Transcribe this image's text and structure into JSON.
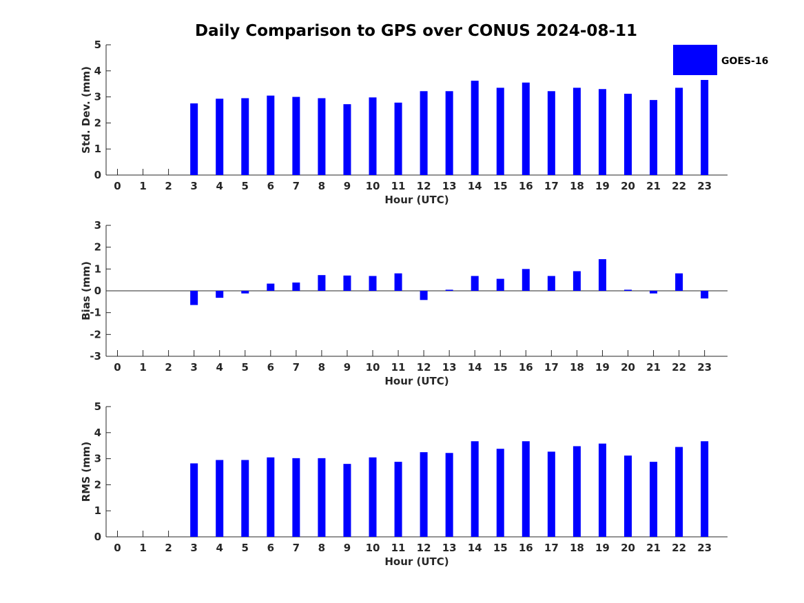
{
  "chart_data": {
    "type": "bar",
    "title": "Daily Comparison to GPS over CONUS 2024-08-11",
    "bar_color": "#0000ff",
    "legend": [
      "GOES-16"
    ],
    "legend_position": "top-right",
    "categories": [
      "0",
      "1",
      "2",
      "3",
      "4",
      "5",
      "6",
      "7",
      "8",
      "9",
      "10",
      "11",
      "12",
      "13",
      "14",
      "15",
      "16",
      "17",
      "18",
      "19",
      "20",
      "21",
      "22",
      "23"
    ],
    "panels": [
      {
        "id": "std",
        "ylabel": "Std. Dev. (mm)",
        "xlabel": "Hour (UTC)",
        "ylim": [
          0,
          5
        ],
        "yticks": [
          "0",
          "1",
          "2",
          "3",
          "4",
          "5"
        ],
        "values": [
          0,
          0,
          0,
          2.75,
          2.93,
          2.95,
          3.05,
          3.0,
          2.95,
          2.72,
          2.98,
          2.78,
          3.22,
          3.22,
          3.62,
          3.35,
          3.55,
          3.22,
          3.35,
          3.3,
          3.12,
          2.88,
          3.35,
          3.65
        ]
      },
      {
        "id": "bias",
        "ylabel": "Bias (mm)",
        "xlabel": "Hour (UTC)",
        "ylim": [
          -3,
          3
        ],
        "yticks": [
          "-3",
          "-2",
          "-1",
          "0",
          "1",
          "2",
          "3"
        ],
        "values": [
          0,
          0,
          0,
          -0.65,
          -0.32,
          -0.12,
          0.33,
          0.38,
          0.72,
          0.7,
          0.68,
          0.8,
          -0.42,
          0.05,
          0.68,
          0.55,
          1.0,
          0.68,
          0.9,
          1.45,
          0.05,
          -0.12,
          0.8,
          -0.35
        ]
      },
      {
        "id": "rms",
        "ylabel": "RMS (mm)",
        "xlabel": "Hour (UTC)",
        "ylim": [
          0,
          5
        ],
        "yticks": [
          "0",
          "1",
          "2",
          "3",
          "4",
          "5"
        ],
        "values": [
          0,
          0,
          0,
          2.82,
          2.95,
          2.95,
          3.05,
          3.02,
          3.02,
          2.8,
          3.05,
          2.88,
          3.25,
          3.22,
          3.67,
          3.38,
          3.67,
          3.27,
          3.48,
          3.58,
          3.12,
          2.88,
          3.45,
          3.67
        ]
      }
    ]
  }
}
